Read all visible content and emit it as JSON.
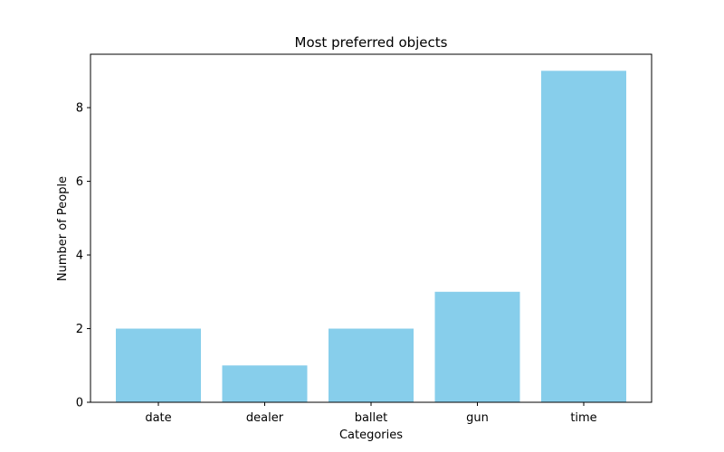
{
  "chart_data": {
    "type": "bar",
    "title": "Most preferred objects",
    "xlabel": "Categories",
    "ylabel": "Number of People",
    "categories": [
      "date",
      "dealer",
      "ballet",
      "gun",
      "time"
    ],
    "values": [
      2,
      1,
      2,
      3,
      9
    ],
    "ylim": [
      0,
      9.45
    ],
    "yticks": [
      0,
      2,
      4,
      6,
      8
    ],
    "grid": false,
    "bar_color": "#87CEEB"
  }
}
